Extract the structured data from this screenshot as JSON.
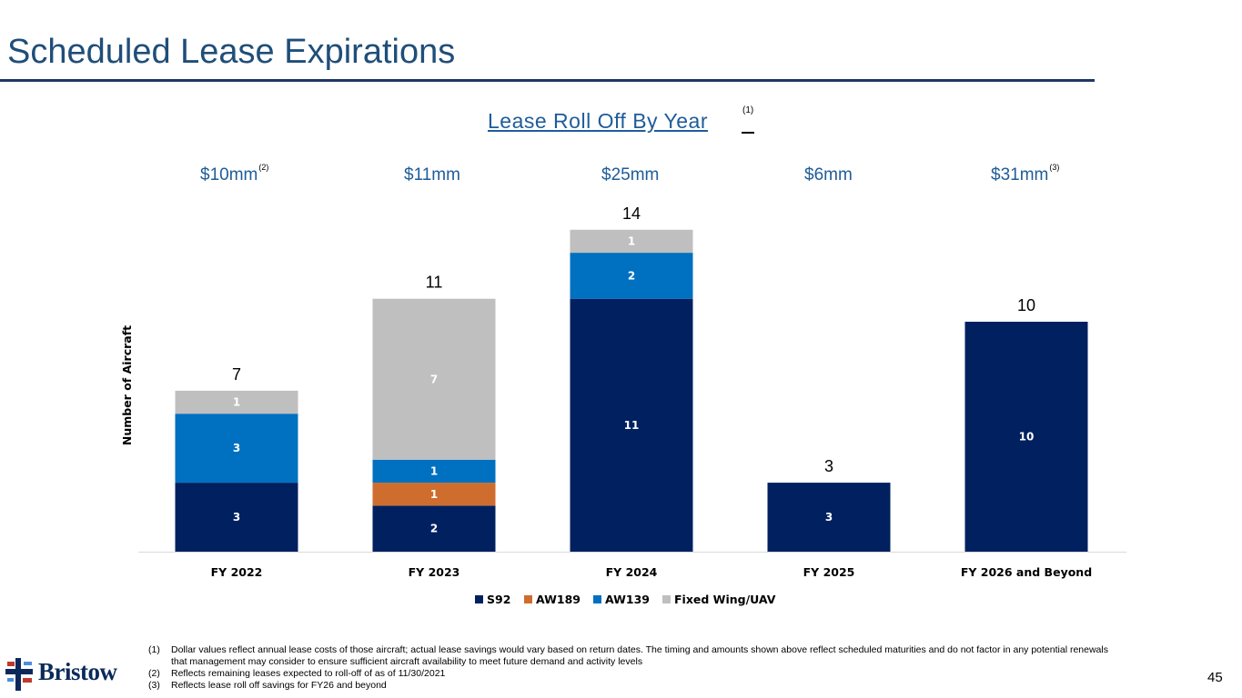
{
  "slide": {
    "title": "Scheduled Lease Expirations",
    "chart_heading": "Lease Roll Off By Year",
    "chart_heading_note": "(1)",
    "page_number": "45",
    "logo_text": "Bristow"
  },
  "costs": [
    {
      "label": "$10mm",
      "note": "(2)"
    },
    {
      "label": "$11mm",
      "note": ""
    },
    {
      "label": "$25mm",
      "note": ""
    },
    {
      "label": "$6mm",
      "note": ""
    },
    {
      "label": "$31mm",
      "note": "(3)"
    }
  ],
  "footnotes": [
    {
      "num": "(1)",
      "text": "Dollar values reflect annual lease costs of those aircraft; actual lease savings would vary based on return dates. The timing and amounts shown above reflect scheduled maturities and do not factor in any potential renewals that management may consider to ensure sufficient aircraft availability to meet future demand and activity levels"
    },
    {
      "num": "(2)",
      "text": "Reflects remaining leases expected to roll-off of as of 11/30/2021"
    },
    {
      "num": "(3)",
      "text": "Reflects lease roll off savings for FY26 and beyond"
    }
  ],
  "chart_data": {
    "type": "bar",
    "stacked": true,
    "categories": [
      "FY 2022",
      "FY 2023",
      "FY 2024",
      "FY 2025",
      "FY 2026 and Beyond"
    ],
    "series": [
      {
        "name": "S92",
        "color": "#002060",
        "values": [
          3,
          2,
          11,
          3,
          10
        ]
      },
      {
        "name": "AW189",
        "color": "#cf6d2e",
        "values": [
          0,
          1,
          0,
          0,
          0
        ]
      },
      {
        "name": "AW139",
        "color": "#0070c0",
        "values": [
          3,
          1,
          2,
          0,
          0
        ]
      },
      {
        "name": "Fixed Wing/UAV",
        "color": "#bfbfbf",
        "values": [
          1,
          7,
          1,
          0,
          0
        ]
      }
    ],
    "totals": [
      7,
      11,
      14,
      3,
      10
    ],
    "ylabel": "Number of Aircraft",
    "xlabel": "",
    "ylim": [
      0,
      14
    ],
    "grid": false,
    "legend": "bottom"
  }
}
